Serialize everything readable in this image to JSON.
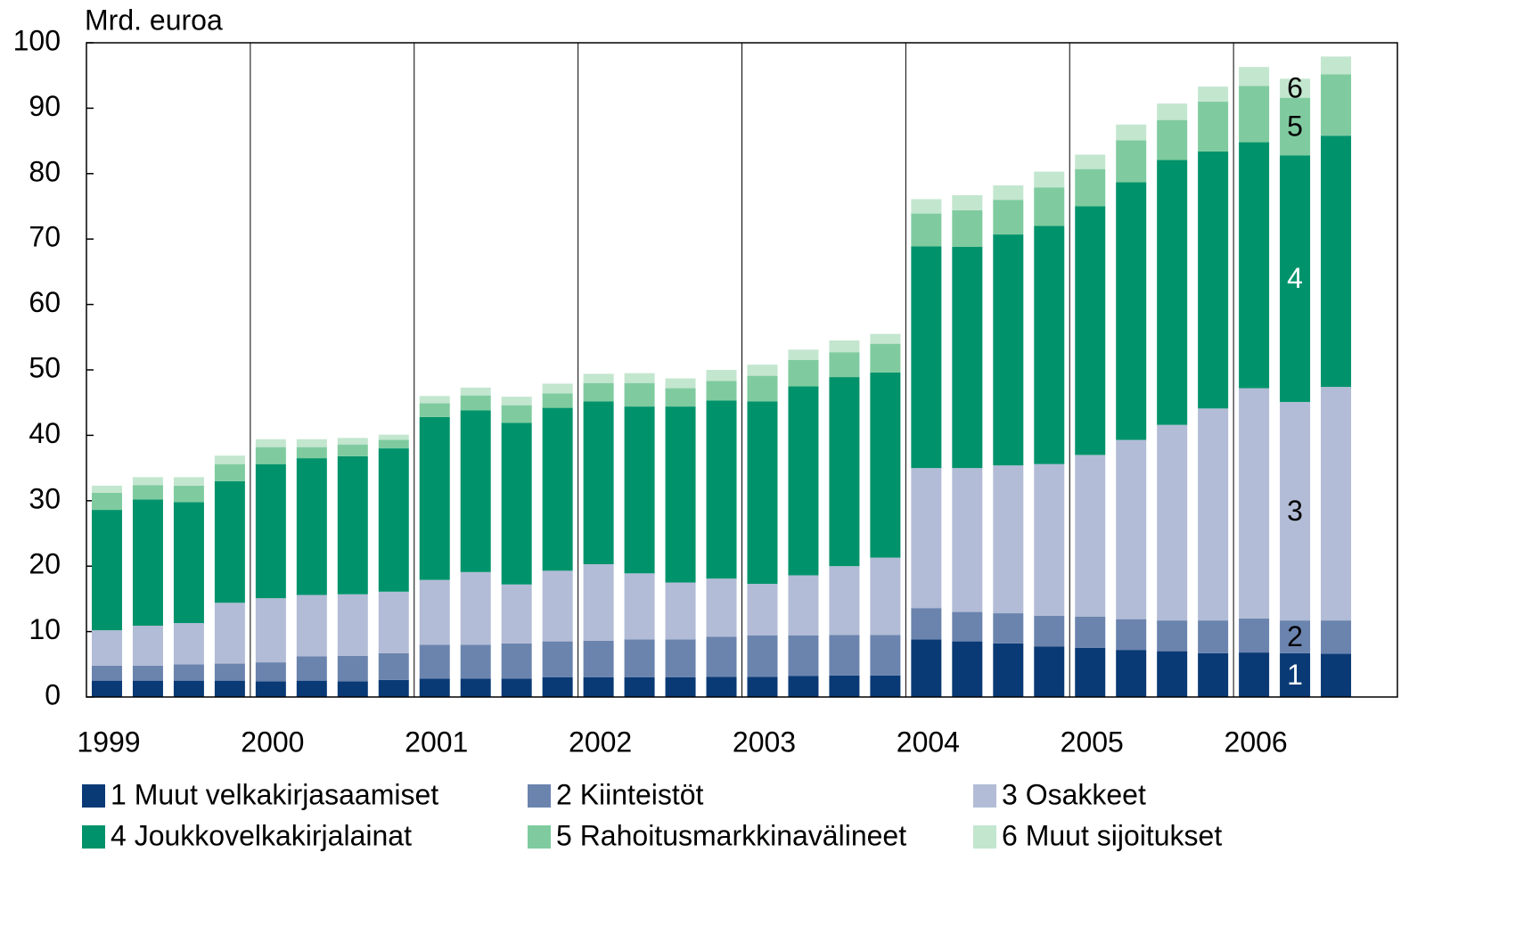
{
  "chart_data": {
    "type": "stacked_bar",
    "y_label": "Mrd. euroa",
    "categories": [
      "1999",
      null,
      null,
      null,
      "2000",
      null,
      null,
      null,
      "2001",
      null,
      null,
      null,
      "2002",
      null,
      null,
      null,
      "2003",
      null,
      null,
      null,
      "2004",
      null,
      null,
      null,
      "2005",
      null,
      null,
      null,
      "2006",
      null,
      null
    ],
    "series": [
      {
        "name": "1 Muut velkakirjasaamiset",
        "color": "#0a3a75",
        "values": [
          2.5,
          2.5,
          2.5,
          2.5,
          2.4,
          2.5,
          2.4,
          2.6,
          2.8,
          2.8,
          2.8,
          3.0,
          3.0,
          3.0,
          3.0,
          3.1,
          3.1,
          3.2,
          3.3,
          3.3,
          8.8,
          8.5,
          8.2,
          7.7,
          7.5,
          7.2,
          7.0,
          6.7,
          6.8,
          6.7,
          6.6
        ]
      },
      {
        "name": "2 Kiinteistöt",
        "color": "#6b84ae",
        "values": [
          2.3,
          2.3,
          2.5,
          2.6,
          2.9,
          3.7,
          3.9,
          4.1,
          5.2,
          5.2,
          5.4,
          5.5,
          5.6,
          5.8,
          5.8,
          6.1,
          6.3,
          6.2,
          6.2,
          6.2,
          4.8,
          4.5,
          4.6,
          4.7,
          4.8,
          4.7,
          4.7,
          5.0,
          5.2,
          5.0,
          5.1
        ]
      },
      {
        "name": "3 Osakkeet",
        "color": "#b2bcd6",
        "values": [
          5.4,
          6.1,
          6.3,
          9.3,
          9.8,
          9.4,
          9.4,
          9.4,
          9.9,
          11.1,
          9.0,
          10.8,
          11.7,
          10.1,
          8.7,
          8.9,
          7.9,
          9.2,
          10.5,
          11.8,
          21.4,
          22.0,
          22.6,
          23.2,
          24.7,
          27.4,
          29.9,
          32.4,
          35.2,
          33.4,
          35.7
        ]
      },
      {
        "name": "4 Joukkovelkakirjalainat",
        "color": "#00936b",
        "values": [
          18.4,
          19.3,
          18.5,
          18.6,
          20.5,
          20.9,
          21.1,
          21.9,
          24.9,
          24.7,
          24.7,
          24.9,
          24.9,
          25.5,
          26.9,
          27.2,
          27.9,
          28.9,
          28.9,
          28.3,
          33.9,
          33.8,
          35.3,
          36.4,
          38.0,
          39.4,
          40.5,
          39.3,
          37.6,
          37.7,
          38.4
        ]
      },
      {
        "name": "5 Rahoitusmarkkinavälineet",
        "color": "#7fcb9f",
        "values": [
          2.6,
          2.2,
          2.5,
          2.6,
          2.6,
          1.7,
          1.8,
          1.3,
          2.1,
          2.3,
          2.7,
          2.2,
          2.8,
          3.6,
          2.8,
          3.0,
          3.9,
          4.0,
          3.8,
          4.4,
          5.0,
          5.6,
          5.3,
          5.9,
          5.7,
          6.4,
          6.1,
          7.6,
          8.6,
          8.8,
          9.4
        ]
      },
      {
        "name": "6 Muut sijoitukset",
        "color": "#c3e6cf",
        "values": [
          1.1,
          1.2,
          1.3,
          1.3,
          1.2,
          1.2,
          1.0,
          0.8,
          1.1,
          1.2,
          1.3,
          1.5,
          1.4,
          1.5,
          1.5,
          1.7,
          1.7,
          1.6,
          1.8,
          1.5,
          2.2,
          2.3,
          2.2,
          2.4,
          2.2,
          2.4,
          2.5,
          2.3,
          2.9,
          2.9,
          2.7
        ]
      }
    ],
    "segment_labels": [
      "1",
      "2",
      "3",
      "4",
      "5",
      "6"
    ],
    "ylim": [
      0,
      100
    ],
    "yticks": [
      0,
      10,
      20,
      30,
      40,
      50,
      60,
      70,
      80,
      90,
      100
    ]
  }
}
